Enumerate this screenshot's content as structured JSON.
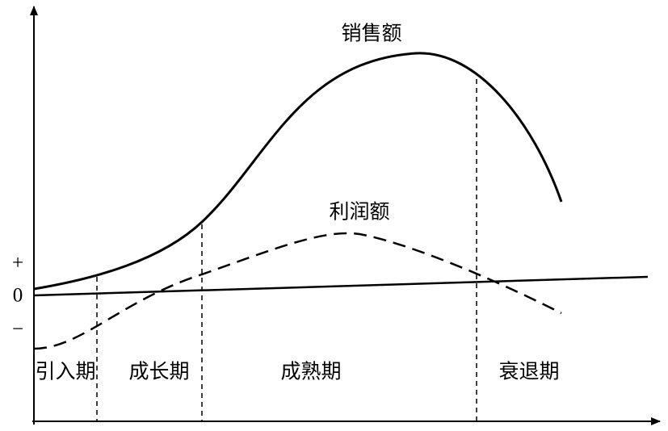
{
  "curves": {
    "sales": "销售额",
    "profit": "利润额"
  },
  "axis": {
    "plus": "+",
    "zero": "0",
    "minus": "−"
  },
  "phases": [
    "引入期",
    "成长期",
    "成熟期",
    "衰退期"
  ]
}
